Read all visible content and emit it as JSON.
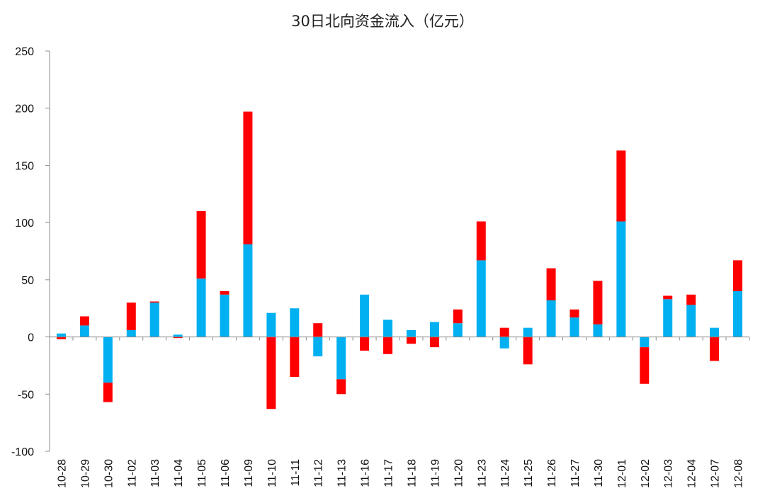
{
  "chart_data": {
    "type": "bar",
    "stacked": true,
    "title": "30日北向资金流入（亿元）",
    "xlabel": "",
    "ylabel": "",
    "ylim": [
      -100,
      250
    ],
    "yticks": [
      -100,
      -50,
      0,
      50,
      100,
      150,
      200,
      250
    ],
    "grid": false,
    "legend": "none",
    "categories": [
      "10-28",
      "10-29",
      "10-30",
      "11-02",
      "11-03",
      "11-04",
      "11-05",
      "11-06",
      "11-09",
      "11-10",
      "11-11",
      "11-12",
      "11-13",
      "11-16",
      "11-17",
      "11-18",
      "11-19",
      "11-20",
      "11-23",
      "11-24",
      "11-25",
      "11-26",
      "11-27",
      "11-30",
      "12-01",
      "12-02",
      "12-03",
      "12-04",
      "12-07",
      "12-08"
    ],
    "series": [
      {
        "color": "#00b0f0",
        "values": [
          3,
          10,
          -40,
          6,
          30,
          2,
          51,
          37,
          81,
          21,
          25,
          -17,
          -37,
          37,
          15,
          6,
          13,
          12,
          67,
          -10,
          8,
          32,
          17,
          11,
          101,
          -9,
          33,
          28,
          8,
          40
        ]
      },
      {
        "color": "#ff0000",
        "values": [
          -2,
          8,
          -17,
          24,
          1,
          -1,
          59,
          3,
          116,
          -63,
          -35,
          12,
          -13,
          -12,
          -15,
          -6,
          -9,
          12,
          34,
          8,
          -24,
          28,
          7,
          38,
          62,
          -32,
          3,
          9,
          -21,
          27
        ]
      }
    ]
  }
}
